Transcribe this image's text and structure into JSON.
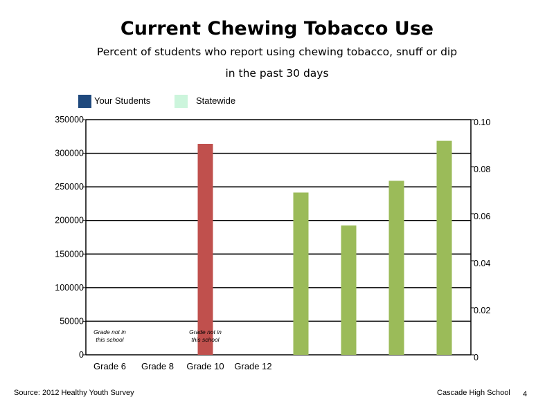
{
  "chart_data": {
    "type": "bar",
    "title": "Current Chewing Tobacco Use",
    "subtitle": [
      "Percent of students who report using chewing tobacco, snuff or dip",
      "in the past 30 days"
    ],
    "categories": [
      "Grade 6",
      "Grade 8",
      "Grade 10",
      "Grade 12"
    ],
    "legend": [
      {
        "name": "Your Students",
        "color": "#1f497d"
      },
      {
        "name": "Statewide",
        "color": "#ccf5dc"
      }
    ],
    "left_axis": {
      "ylim": [
        0,
        350000
      ],
      "ticks": [
        0,
        50000,
        100000,
        150000,
        200000,
        250000,
        300000,
        350000
      ]
    },
    "right_axis": {
      "ylim": [
        0,
        0.1
      ],
      "ticks": [
        "0",
        "0.02",
        "0.04",
        "0.06",
        "0.08",
        "0.10"
      ]
    },
    "series": [
      {
        "axis": "left",
        "color": "#c0504d",
        "points": [
          {
            "slot": 2,
            "value": 314000
          }
        ]
      },
      {
        "axis": "right",
        "color": "#9bbb59",
        "points": [
          {
            "slot": 4,
            "value": 0.069
          },
          {
            "slot": 5,
            "value": 0.055
          },
          {
            "slot": 6,
            "value": 0.074
          },
          {
            "slot": 7,
            "value": 0.091
          }
        ]
      }
    ],
    "annotations": [
      {
        "slot": 0,
        "text": [
          "Grade not in",
          "this school"
        ]
      },
      {
        "slot": 2,
        "text": [
          "Grade not in",
          "this school"
        ]
      }
    ],
    "grid": true,
    "legend_position": "top-left"
  },
  "footer": {
    "source": "Source: 2012 Healthy Youth Survey",
    "school": "Cascade High School",
    "page": "4"
  }
}
